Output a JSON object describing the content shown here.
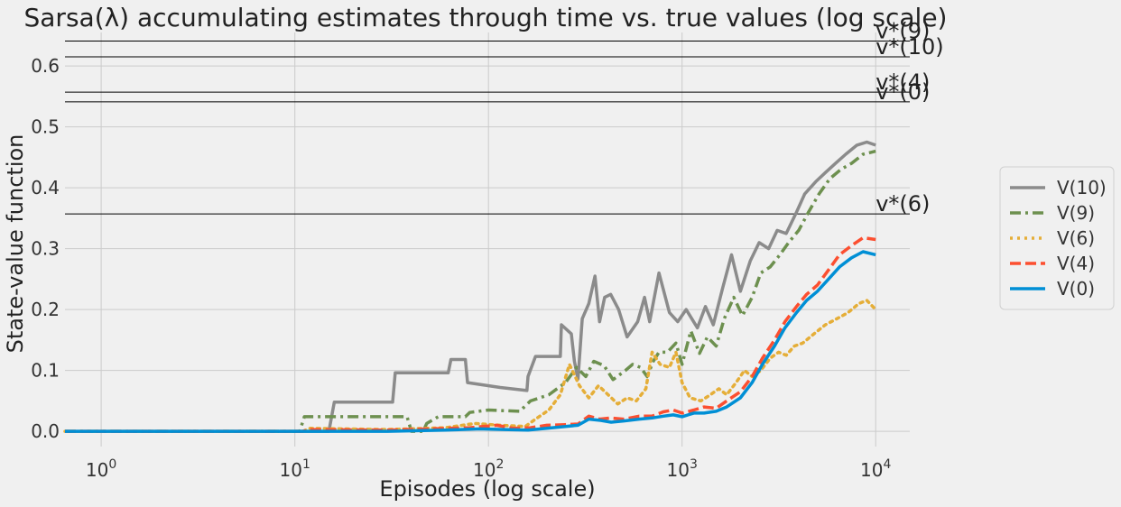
{
  "chart_data": {
    "type": "line",
    "title": "Sarsa(λ) accumulating estimates through time vs. true values (log scale)",
    "xlabel": "Episodes (log scale)",
    "ylabel": "State-value function",
    "x_scale": "log",
    "xlim": [
      0.65,
      15000
    ],
    "ylim": [
      -0.025,
      0.655
    ],
    "grid": true,
    "legend_position": "right, outside plot",
    "x_ticks": [
      {
        "value": 1,
        "base": "10",
        "exp": "0"
      },
      {
        "value": 10,
        "base": "10",
        "exp": "1"
      },
      {
        "value": 100,
        "base": "10",
        "exp": "2"
      },
      {
        "value": 1000,
        "base": "10",
        "exp": "3"
      },
      {
        "value": 10000,
        "base": "10",
        "exp": "4"
      }
    ],
    "y_ticks": [
      {
        "value": 0.0,
        "label": "0.0"
      },
      {
        "value": 0.1,
        "label": "0.1"
      },
      {
        "value": 0.2,
        "label": "0.2"
      },
      {
        "value": 0.3,
        "label": "0.3"
      },
      {
        "value": 0.4,
        "label": "0.4"
      },
      {
        "value": 0.5,
        "label": "0.5"
      },
      {
        "value": 0.6,
        "label": "0.6"
      }
    ],
    "reference_lines": [
      {
        "label": "v*(9)",
        "value": 0.641
      },
      {
        "label": "v*(10)",
        "value": 0.615
      },
      {
        "label": "v*(4)",
        "value": 0.557
      },
      {
        "label": "v*(0)",
        "value": 0.541
      },
      {
        "label": "v*(6)",
        "value": 0.357
      }
    ],
    "series": [
      {
        "name": "V(10)",
        "color": "#8b8b8b",
        "dash": "solid",
        "points": [
          [
            0.65,
            0
          ],
          [
            15,
            0
          ],
          [
            16,
            0.048
          ],
          [
            32,
            0.048
          ],
          [
            33,
            0.096
          ],
          [
            62,
            0.096
          ],
          [
            64,
            0.118
          ],
          [
            76,
            0.118
          ],
          [
            78,
            0.08
          ],
          [
            115,
            0.072
          ],
          [
            158,
            0.067
          ],
          [
            160,
            0.09
          ],
          [
            175,
            0.123
          ],
          [
            235,
            0.123
          ],
          [
            238,
            0.175
          ],
          [
            268,
            0.16
          ],
          [
            278,
            0.115
          ],
          [
            290,
            0.086
          ],
          [
            305,
            0.185
          ],
          [
            330,
            0.21
          ],
          [
            355,
            0.255
          ],
          [
            375,
            0.18
          ],
          [
            398,
            0.22
          ],
          [
            428,
            0.225
          ],
          [
            470,
            0.2
          ],
          [
            520,
            0.155
          ],
          [
            590,
            0.18
          ],
          [
            640,
            0.22
          ],
          [
            680,
            0.18
          ],
          [
            760,
            0.26
          ],
          [
            860,
            0.195
          ],
          [
            950,
            0.18
          ],
          [
            1050,
            0.2
          ],
          [
            1200,
            0.17
          ],
          [
            1320,
            0.205
          ],
          [
            1450,
            0.175
          ],
          [
            1620,
            0.235
          ],
          [
            1800,
            0.29
          ],
          [
            2000,
            0.23
          ],
          [
            2250,
            0.28
          ],
          [
            2500,
            0.31
          ],
          [
            2800,
            0.3
          ],
          [
            3100,
            0.33
          ],
          [
            3450,
            0.325
          ],
          [
            3900,
            0.36
          ],
          [
            4300,
            0.39
          ],
          [
            4900,
            0.41
          ],
          [
            5500,
            0.425
          ],
          [
            6200,
            0.44
          ],
          [
            7000,
            0.455
          ],
          [
            8000,
            0.47
          ],
          [
            9000,
            0.475
          ],
          [
            10000,
            0.47
          ]
        ]
      },
      {
        "name": "V(9)",
        "color": "#6d904f",
        "dash": "dashdot",
        "points": [
          [
            0.65,
            0
          ],
          [
            10.6,
            0
          ],
          [
            11.2,
            0.024
          ],
          [
            38,
            0.024
          ],
          [
            40,
            0
          ],
          [
            46,
            0
          ],
          [
            48,
            0.013
          ],
          [
            55,
            0.024
          ],
          [
            76,
            0.024
          ],
          [
            80,
            0.031
          ],
          [
            100,
            0.035
          ],
          [
            145,
            0.033
          ],
          [
            165,
            0.05
          ],
          [
            205,
            0.06
          ],
          [
            250,
            0.08
          ],
          [
            285,
            0.105
          ],
          [
            318,
            0.09
          ],
          [
            350,
            0.115
          ],
          [
            395,
            0.108
          ],
          [
            440,
            0.085
          ],
          [
            510,
            0.1
          ],
          [
            555,
            0.11
          ],
          [
            610,
            0.105
          ],
          [
            660,
            0.09
          ],
          [
            710,
            0.115
          ],
          [
            760,
            0.13
          ],
          [
            840,
            0.13
          ],
          [
            930,
            0.145
          ],
          [
            1000,
            0.11
          ],
          [
            1110,
            0.165
          ],
          [
            1230,
            0.128
          ],
          [
            1350,
            0.155
          ],
          [
            1500,
            0.14
          ],
          [
            1650,
            0.185
          ],
          [
            1850,
            0.22
          ],
          [
            2050,
            0.19
          ],
          [
            2300,
            0.22
          ],
          [
            2550,
            0.26
          ],
          [
            2850,
            0.27
          ],
          [
            3200,
            0.29
          ],
          [
            3550,
            0.31
          ],
          [
            4000,
            0.33
          ],
          [
            4500,
            0.36
          ],
          [
            5100,
            0.39
          ],
          [
            5800,
            0.415
          ],
          [
            6600,
            0.43
          ],
          [
            7500,
            0.44
          ],
          [
            8600,
            0.455
          ],
          [
            10000,
            0.46
          ]
        ]
      },
      {
        "name": "V(6)",
        "color": "#e5ae38",
        "dash": "dotted",
        "points": [
          [
            0.65,
            0
          ],
          [
            11,
            0
          ],
          [
            12,
            0.005
          ],
          [
            30,
            0.003
          ],
          [
            60,
            0.006
          ],
          [
            85,
            0.013
          ],
          [
            115,
            0.01
          ],
          [
            155,
            0.008
          ],
          [
            175,
            0.02
          ],
          [
            205,
            0.035
          ],
          [
            235,
            0.06
          ],
          [
            262,
            0.11
          ],
          [
            295,
            0.075
          ],
          [
            330,
            0.055
          ],
          [
            370,
            0.075
          ],
          [
            415,
            0.06
          ],
          [
            465,
            0.045
          ],
          [
            520,
            0.055
          ],
          [
            580,
            0.05
          ],
          [
            650,
            0.07
          ],
          [
            700,
            0.13
          ],
          [
            770,
            0.11
          ],
          [
            860,
            0.105
          ],
          [
            930,
            0.13
          ],
          [
            1000,
            0.08
          ],
          [
            1100,
            0.055
          ],
          [
            1250,
            0.05
          ],
          [
            1400,
            0.06
          ],
          [
            1550,
            0.07
          ],
          [
            1700,
            0.06
          ],
          [
            1900,
            0.08
          ],
          [
            2100,
            0.1
          ],
          [
            2300,
            0.09
          ],
          [
            2550,
            0.1
          ],
          [
            2850,
            0.12
          ],
          [
            3150,
            0.13
          ],
          [
            3450,
            0.125
          ],
          [
            3800,
            0.14
          ],
          [
            4200,
            0.145
          ],
          [
            4800,
            0.16
          ],
          [
            5500,
            0.175
          ],
          [
            6300,
            0.185
          ],
          [
            7200,
            0.195
          ],
          [
            8200,
            0.21
          ],
          [
            9000,
            0.215
          ],
          [
            10000,
            0.2
          ]
        ]
      },
      {
        "name": "V(4)",
        "color": "#fc4f30",
        "dash": "dashed",
        "points": [
          [
            0.65,
            0
          ],
          [
            11,
            0
          ],
          [
            12,
            0.003
          ],
          [
            30,
            0.002
          ],
          [
            50,
            0.004
          ],
          [
            80,
            0.006
          ],
          [
            110,
            0.01
          ],
          [
            135,
            0.005
          ],
          [
            165,
            0.006
          ],
          [
            200,
            0.01
          ],
          [
            250,
            0.011
          ],
          [
            290,
            0.012
          ],
          [
            330,
            0.025
          ],
          [
            375,
            0.02
          ],
          [
            425,
            0.022
          ],
          [
            500,
            0.02
          ],
          [
            600,
            0.025
          ],
          [
            700,
            0.025
          ],
          [
            800,
            0.032
          ],
          [
            900,
            0.035
          ],
          [
            1000,
            0.03
          ],
          [
            1150,
            0.035
          ],
          [
            1300,
            0.04
          ],
          [
            1500,
            0.038
          ],
          [
            1700,
            0.05
          ],
          [
            2000,
            0.065
          ],
          [
            2300,
            0.09
          ],
          [
            2600,
            0.12
          ],
          [
            3000,
            0.15
          ],
          [
            3400,
            0.18
          ],
          [
            3900,
            0.205
          ],
          [
            4400,
            0.225
          ],
          [
            5000,
            0.24
          ],
          [
            5700,
            0.265
          ],
          [
            6500,
            0.29
          ],
          [
            7500,
            0.305
          ],
          [
            8600,
            0.318
          ],
          [
            10000,
            0.315
          ]
        ]
      },
      {
        "name": "V(0)",
        "color": "#008fd5",
        "dash": "solid",
        "points": [
          [
            0.65,
            0
          ],
          [
            11,
            0
          ],
          [
            30,
            0
          ],
          [
            60,
            0.002
          ],
          [
            90,
            0.004
          ],
          [
            120,
            0.003
          ],
          [
            160,
            0.002
          ],
          [
            200,
            0.005
          ],
          [
            250,
            0.008
          ],
          [
            290,
            0.01
          ],
          [
            330,
            0.02
          ],
          [
            380,
            0.018
          ],
          [
            430,
            0.015
          ],
          [
            500,
            0.017
          ],
          [
            600,
            0.02
          ],
          [
            700,
            0.022
          ],
          [
            800,
            0.025
          ],
          [
            900,
            0.027
          ],
          [
            1000,
            0.024
          ],
          [
            1150,
            0.03
          ],
          [
            1300,
            0.03
          ],
          [
            1500,
            0.033
          ],
          [
            1700,
            0.04
          ],
          [
            2000,
            0.055
          ],
          [
            2300,
            0.08
          ],
          [
            2600,
            0.11
          ],
          [
            3000,
            0.14
          ],
          [
            3400,
            0.17
          ],
          [
            3900,
            0.195
          ],
          [
            4400,
            0.215
          ],
          [
            5000,
            0.23
          ],
          [
            5700,
            0.25
          ],
          [
            6500,
            0.27
          ],
          [
            7500,
            0.285
          ],
          [
            8600,
            0.295
          ],
          [
            10000,
            0.29
          ]
        ]
      }
    ]
  }
}
